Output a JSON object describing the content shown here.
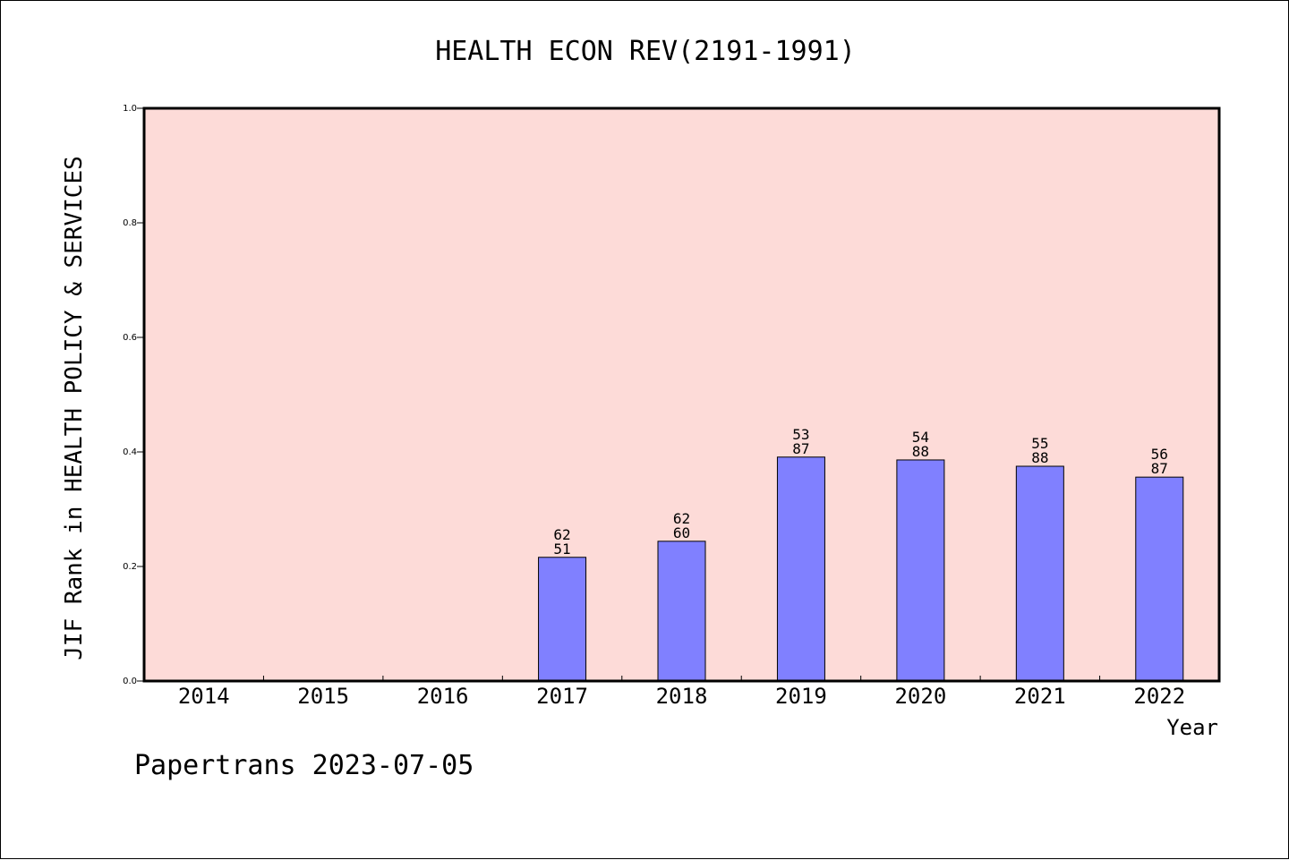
{
  "chart_data": {
    "type": "bar",
    "title": "HEALTH ECON REV(2191-1991)",
    "ylabel": "JIF Rank in HEALTH POLICY & SERVICES",
    "xlabel": "Year",
    "categories": [
      "2014",
      "2015",
      "2016",
      "2017",
      "2018",
      "2019",
      "2020",
      "2021",
      "2022"
    ],
    "values": [
      null,
      null,
      null,
      0.216,
      0.244,
      0.391,
      0.386,
      0.375,
      0.356
    ],
    "label_top": [
      "",
      "",
      "",
      "62",
      "62",
      "53",
      "54",
      "55",
      "56"
    ],
    "label_bottom": [
      "",
      "",
      "",
      "51",
      "60",
      "87",
      "88",
      "88",
      "87"
    ],
    "ylim": [
      0,
      1.0
    ],
    "yticks": [
      "0.0",
      "0.2",
      "0.4",
      "0.6",
      "0.8",
      "1.0"
    ],
    "grid": false,
    "colors": {
      "plot_background": "#fddbd8",
      "bar": "#8080ff",
      "axis": "#000000"
    }
  },
  "footer": "Papertrans 2023-07-05"
}
